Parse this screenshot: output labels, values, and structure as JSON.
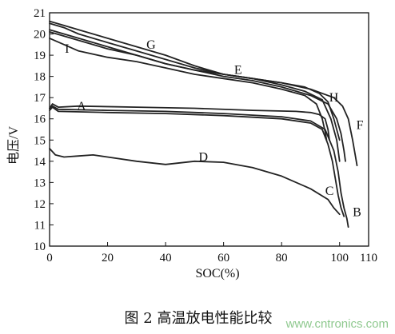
{
  "chart_data": {
    "type": "line",
    "title": "",
    "caption": "图 2   高温放电性能比较",
    "xlabel": "SOC(%)",
    "ylabel": "电压/V",
    "xlim": [
      0,
      110
    ],
    "ylim": [
      10,
      21
    ],
    "x_ticks": [
      0,
      20,
      40,
      60,
      80,
      100,
      110
    ],
    "y_ticks": [
      10,
      11,
      12,
      13,
      14,
      15,
      16,
      17,
      18,
      19,
      20,
      21
    ],
    "grid": false,
    "legend": "none",
    "line_color": "#222222",
    "series": [
      {
        "name": "A",
        "label_at": [
          11,
          16.6
        ],
        "points": [
          [
            0,
            16.5
          ],
          [
            1,
            16.7
          ],
          [
            3,
            16.55
          ],
          [
            10,
            16.6
          ],
          [
            30,
            16.55
          ],
          [
            50,
            16.5
          ],
          [
            70,
            16.4
          ],
          [
            85,
            16.35
          ],
          [
            90,
            16.3
          ],
          [
            93,
            16.2
          ],
          [
            95,
            16.0
          ],
          [
            96,
            15.5
          ],
          [
            96.5,
            15.0
          ]
        ]
      },
      {
        "name": "B",
        "label_at": [
          106,
          11.6
        ],
        "points": [
          [
            0,
            16.5
          ],
          [
            1,
            16.6
          ],
          [
            3,
            16.45
          ],
          [
            20,
            16.4
          ],
          [
            40,
            16.35
          ],
          [
            60,
            16.25
          ],
          [
            80,
            16.1
          ],
          [
            90,
            15.9
          ],
          [
            95,
            15.5
          ],
          [
            98,
            14.5
          ],
          [
            99.5,
            13.5
          ],
          [
            100.5,
            12.5
          ],
          [
            101.5,
            11.8
          ],
          [
            102.5,
            11.3
          ],
          [
            103,
            10.9
          ]
        ]
      },
      {
        "name": "C",
        "label_at": [
          96.5,
          12.6
        ],
        "points": [
          [
            0,
            16.4
          ],
          [
            1,
            16.55
          ],
          [
            3,
            16.35
          ],
          [
            20,
            16.3
          ],
          [
            40,
            16.25
          ],
          [
            60,
            16.15
          ],
          [
            80,
            16.0
          ],
          [
            90,
            15.8
          ],
          [
            94,
            15.5
          ],
          [
            96,
            14.8
          ],
          [
            97.5,
            14.0
          ],
          [
            98.5,
            13.2
          ],
          [
            99.5,
            12.4
          ],
          [
            100.5,
            11.8
          ],
          [
            101.5,
            11.4
          ]
        ]
      },
      {
        "name": "D",
        "label_at": [
          53,
          14.2
        ],
        "points": [
          [
            0,
            14.6
          ],
          [
            2,
            14.3
          ],
          [
            5,
            14.2
          ],
          [
            10,
            14.25
          ],
          [
            15,
            14.3
          ],
          [
            20,
            14.2
          ],
          [
            30,
            14.0
          ],
          [
            40,
            13.85
          ],
          [
            50,
            14.0
          ],
          [
            60,
            13.95
          ],
          [
            70,
            13.7
          ],
          [
            80,
            13.3
          ],
          [
            90,
            12.7
          ],
          [
            96,
            12.2
          ],
          [
            98,
            11.8
          ],
          [
            100,
            11.5
          ]
        ]
      },
      {
        "name": "E",
        "label_at": [
          65,
          18.3
        ],
        "points": [
          [
            0,
            20.5
          ],
          [
            5,
            20.3
          ],
          [
            10,
            20.0
          ],
          [
            20,
            19.6
          ],
          [
            30,
            19.2
          ],
          [
            40,
            18.8
          ],
          [
            50,
            18.4
          ],
          [
            60,
            18.1
          ],
          [
            70,
            17.9
          ],
          [
            80,
            17.6
          ],
          [
            88,
            17.3
          ],
          [
            94,
            16.9
          ],
          [
            97,
            16.0
          ],
          [
            99,
            15.0
          ],
          [
            100,
            14.0
          ]
        ]
      },
      {
        "name": "F",
        "label_at": [
          107,
          15.7
        ],
        "points": [
          [
            0,
            20.2
          ],
          [
            10,
            19.8
          ],
          [
            20,
            19.4
          ],
          [
            30,
            19.0
          ],
          [
            40,
            18.6
          ],
          [
            50,
            18.3
          ],
          [
            60,
            18.1
          ],
          [
            70,
            17.9
          ],
          [
            80,
            17.7
          ],
          [
            90,
            17.4
          ],
          [
            98,
            17.0
          ],
          [
            101,
            16.6
          ],
          [
            103,
            16.0
          ],
          [
            104.5,
            15.0
          ],
          [
            105.5,
            14.2
          ],
          [
            106,
            13.8
          ]
        ]
      },
      {
        "name": "G",
        "label_at": [
          35,
          19.5
        ],
        "points": [
          [
            0,
            20.6
          ],
          [
            5,
            20.4
          ],
          [
            10,
            20.2
          ],
          [
            20,
            19.8
          ],
          [
            30,
            19.4
          ],
          [
            40,
            19.0
          ],
          [
            50,
            18.5
          ],
          [
            60,
            18.1
          ],
          [
            70,
            17.9
          ],
          [
            80,
            17.7
          ],
          [
            88,
            17.5
          ],
          [
            93,
            17.2
          ],
          [
            96,
            16.8
          ],
          [
            98,
            16.0
          ],
          [
            100,
            15.0
          ]
        ]
      },
      {
        "name": "H",
        "label_at": [
          98,
          17.0
        ],
        "points": [
          [
            0,
            20.1
          ],
          [
            10,
            19.7
          ],
          [
            20,
            19.3
          ],
          [
            30,
            19.0
          ],
          [
            40,
            18.6
          ],
          [
            50,
            18.3
          ],
          [
            60,
            18.0
          ],
          [
            70,
            17.8
          ],
          [
            80,
            17.5
          ],
          [
            90,
            17.1
          ],
          [
            96,
            16.7
          ],
          [
            99,
            16.0
          ],
          [
            100.5,
            15.3
          ],
          [
            101.5,
            14.5
          ],
          [
            102,
            14.0
          ]
        ]
      },
      {
        "name": "I",
        "label_at": [
          6,
          19.3
        ],
        "points": [
          [
            0,
            19.8
          ],
          [
            5,
            19.5
          ],
          [
            10,
            19.2
          ],
          [
            20,
            18.9
          ],
          [
            30,
            18.7
          ],
          [
            40,
            18.4
          ],
          [
            50,
            18.1
          ],
          [
            60,
            17.9
          ],
          [
            70,
            17.7
          ],
          [
            80,
            17.4
          ],
          [
            88,
            17.1
          ],
          [
            92,
            16.7
          ],
          [
            94,
            16.0
          ],
          [
            95,
            15.4
          ],
          [
            95.5,
            15.0
          ]
        ]
      }
    ]
  },
  "watermark": {
    "text": "www.cntronics.com",
    "color": "#8fc98f"
  }
}
